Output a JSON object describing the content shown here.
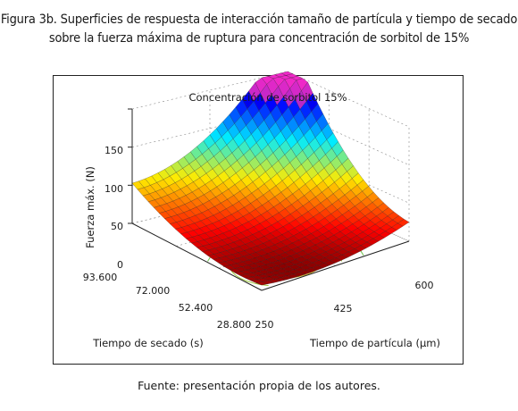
{
  "figure": {
    "title_line1": "Figura 3b. Superficies de respuesta de interacción tamaño de partícula y tiempo de secado",
    "title_line2": "sobre la fuerza máxima de ruptura para concentración de sorbitol de 15%",
    "source": "Fuente: presentación propia de los autores."
  },
  "chart_data": {
    "type": "surface3d",
    "title": "Concentración de sorbitol 15%",
    "zlabel": "Fuerza máx. (N)",
    "xlabel": "Tiempo de partícula (μm)",
    "ylabel": "Tiempo de secado (s)",
    "x_ticks": [
      "250",
      "425",
      "600"
    ],
    "y_ticks": [
      "28.800",
      "52.400",
      "72.000",
      "93.600"
    ],
    "z_ticks": [
      "0",
      "50",
      "100",
      "150"
    ],
    "x_range": [
      250,
      600
    ],
    "y_range": [
      28800,
      93600
    ],
    "zlim": [
      0,
      150
    ],
    "corner_values": [
      {
        "particle": 250,
        "drying": 28800,
        "force": 8
      },
      {
        "particle": 600,
        "drying": 28800,
        "force": 20
      },
      {
        "particle": 250,
        "drying": 93600,
        "force": 55
      },
      {
        "particle": 600,
        "drying": 93600,
        "force": 145
      }
    ],
    "minimum": {
      "particle": 360,
      "drying": 40000,
      "force": 0
    },
    "colormap": "jet",
    "grid": true
  }
}
